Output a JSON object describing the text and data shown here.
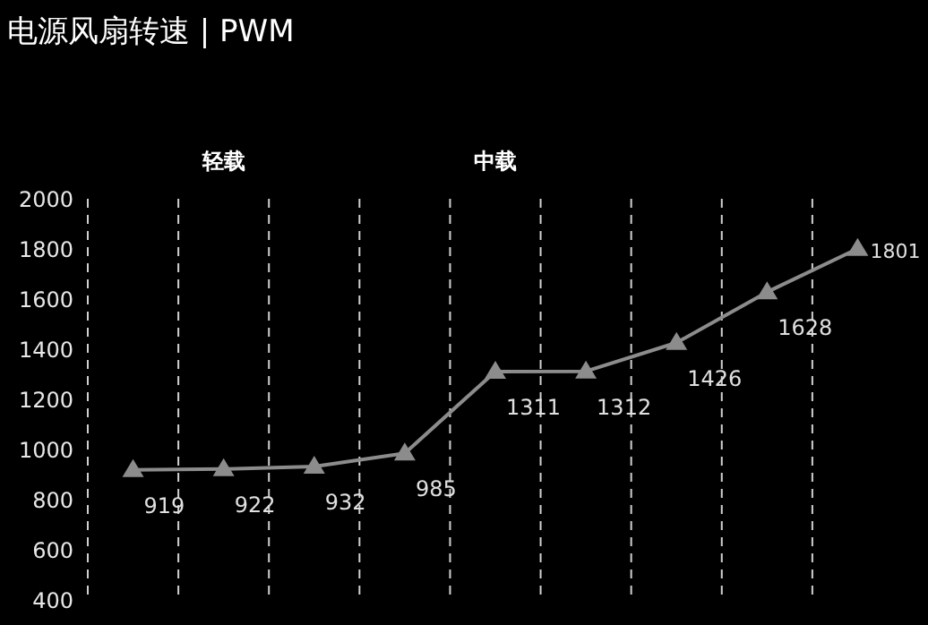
{
  "chart_data": {
    "type": "line",
    "title": "电源风扇转速 | PWM",
    "annotations": [
      "轻载",
      "中载"
    ],
    "categories": [
      null,
      null,
      null,
      null,
      null,
      null,
      null,
      null,
      null
    ],
    "series": [
      {
        "color": "#8c8c8c",
        "values": [
          919,
          922,
          932,
          985,
          1311,
          1312,
          1426,
          1628,
          1801
        ]
      }
    ],
    "ylim": [
      400,
      2000
    ],
    "yticks": [
      400,
      600,
      800,
      1000,
      1200,
      1400,
      1600,
      1800,
      2000
    ],
    "grid": "x",
    "marker": "triangle",
    "line_style": "solid",
    "data_labels": true,
    "tick_labels": "y"
  }
}
